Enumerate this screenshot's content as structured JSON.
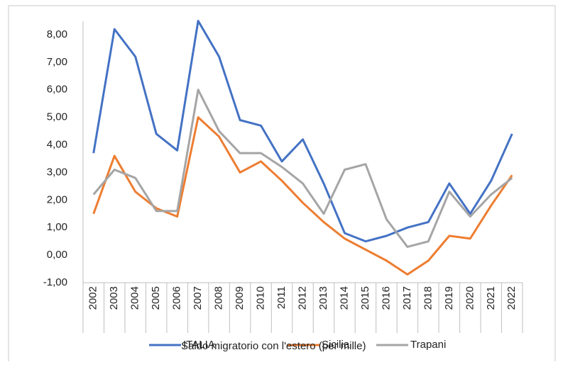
{
  "chart_data": {
    "type": "line",
    "title": "Saldo migratorio con l'estero (per mille)",
    "categories": [
      "2002",
      "2003",
      "2004",
      "2005",
      "2006",
      "2007",
      "2008",
      "2009",
      "2010",
      "2011",
      "2012",
      "2013",
      "2014",
      "2015",
      "2016",
      "2017",
      "2018",
      "2019",
      "2020",
      "2021",
      "2022"
    ],
    "series": [
      {
        "name": "ITALIA",
        "color": "#4472c4",
        "values": [
          3.7,
          8.2,
          7.2,
          4.4,
          3.8,
          8.5,
          7.2,
          4.9,
          4.7,
          3.4,
          4.2,
          2.6,
          0.8,
          0.5,
          0.7,
          1.0,
          1.2,
          2.6,
          1.5,
          2.7,
          4.4
        ]
      },
      {
        "name": "Sicilia",
        "color": "#ed7d31",
        "values": [
          1.5,
          3.6,
          2.3,
          1.7,
          1.4,
          5.0,
          4.3,
          3.0,
          3.4,
          2.7,
          1.9,
          1.2,
          0.6,
          0.2,
          -0.2,
          -0.7,
          -0.2,
          0.7,
          0.6,
          1.8,
          2.9
        ]
      },
      {
        "name": "Trapani",
        "color": "#a5a5a5",
        "values": [
          2.2,
          3.1,
          2.8,
          1.6,
          1.6,
          6.0,
          4.5,
          3.7,
          3.7,
          3.2,
          2.6,
          1.5,
          3.1,
          3.3,
          1.3,
          0.3,
          0.5,
          2.3,
          1.4,
          2.2,
          2.8
        ]
      }
    ],
    "ylim": [
      -1,
      9
    ],
    "yticks": [
      {
        "value": -1,
        "label": "-1,00"
      },
      {
        "value": 0,
        "label": "0,00"
      },
      {
        "value": 1,
        "label": "1,00"
      },
      {
        "value": 2,
        "label": "2,00"
      },
      {
        "value": 3,
        "label": "3,00"
      },
      {
        "value": 4,
        "label": "4,00"
      },
      {
        "value": 5,
        "label": "5,00"
      },
      {
        "value": 6,
        "label": "6,00"
      },
      {
        "value": 7,
        "label": "7,00"
      },
      {
        "value": 8,
        "label": "8,00"
      }
    ],
    "grid": false,
    "legend": "bottom"
  }
}
